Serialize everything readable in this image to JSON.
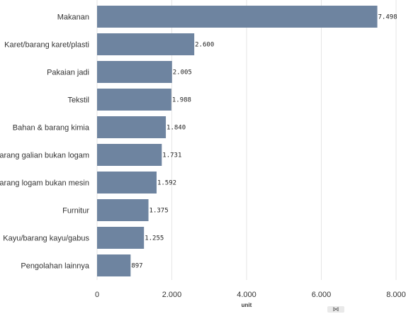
{
  "chart_data": {
    "type": "bar",
    "orientation": "horizontal",
    "categories": [
      "Makanan",
      "Karet/barang karet/plasti",
      "Pakaian jadi",
      "Tekstil",
      "Bahan & barang kimia",
      "Barang galian bukan logam",
      "Barang logam bukan mesin",
      "Furnitur",
      "Kayu/barang kayu/gabus",
      "Pengolahan lainnya"
    ],
    "values": [
      7498,
      2600,
      2005,
      1988,
      1840,
      1731,
      1592,
      1375,
      1255,
      897
    ],
    "value_labels": [
      "7.498",
      "2.600",
      "2.005",
      "1.988",
      "1.840",
      "1.731",
      "1.592",
      "1.375",
      "1.255",
      "897"
    ],
    "xlabel": "unit",
    "xlim": [
      0,
      8000
    ],
    "x_ticks": [
      0,
      2000,
      4000,
      6000,
      8000
    ],
    "x_tick_labels": [
      "0",
      "2.000",
      "4.000",
      "6.000",
      "8.000"
    ],
    "grid": true,
    "bar_color": "#6e84a0"
  },
  "corner_glyph": "⋈"
}
